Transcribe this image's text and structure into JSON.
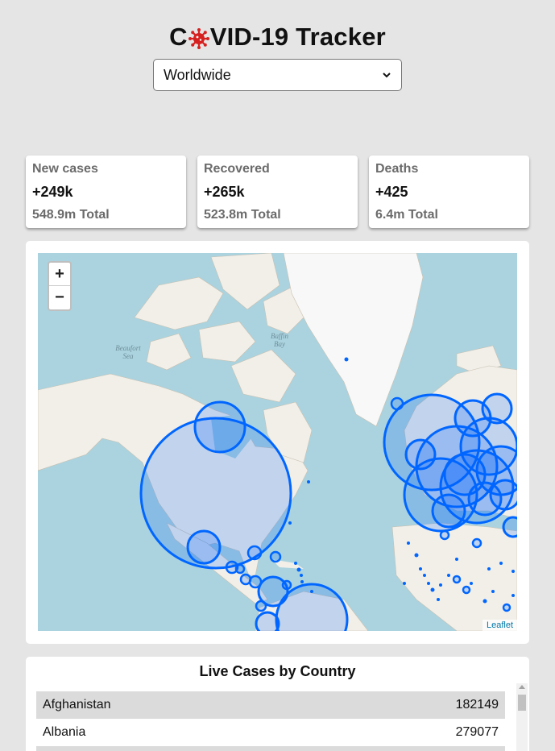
{
  "app": {
    "title_before": "C",
    "title_after": "VID-19 Tracker",
    "title_icon": "virus-icon"
  },
  "country_select": {
    "selected": "Worldwide",
    "icon": "chevron-down-icon"
  },
  "stats": [
    {
      "label": "New cases",
      "today": "+249k",
      "total": "548.9m Total"
    },
    {
      "label": "Recovered",
      "today": "+265k",
      "total": "523.8m Total"
    },
    {
      "label": "Deaths",
      "today": "+425",
      "total": "6.4m Total"
    }
  ],
  "map": {
    "zoom_in": "+",
    "zoom_out": "−",
    "attribution": "Leaflet",
    "label_beaufort_1": "Beaufort",
    "label_beaufort_2": "Sea",
    "label_baffin_1": "Baffin",
    "label_baffin_2": "Bay",
    "colors": {
      "water": "#aad3df",
      "land": "#f2efe9",
      "ice": "#f8f8f8",
      "circle": "#0066ff"
    }
  },
  "live_cases": {
    "title": "Live Cases by Country",
    "rows": [
      {
        "country": "Afghanistan",
        "cases": "182149"
      },
      {
        "country": "Albania",
        "cases": "279077"
      }
    ]
  }
}
